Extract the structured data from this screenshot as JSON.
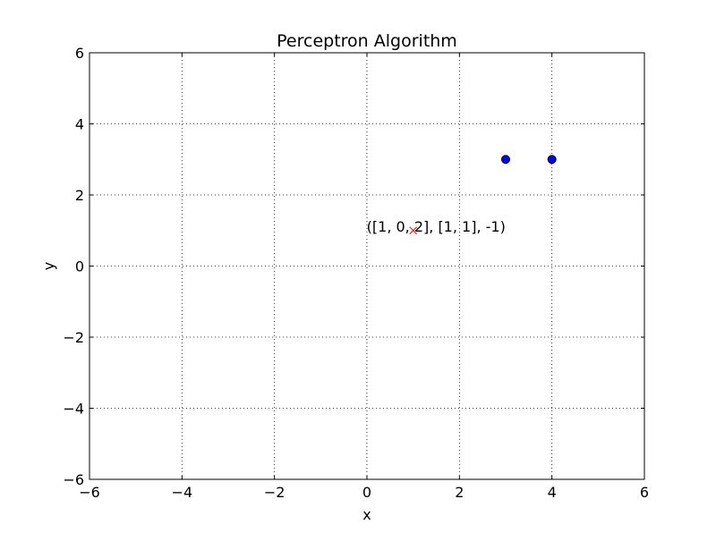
{
  "chart_data": {
    "type": "scatter",
    "title": "Perceptron Algorithm",
    "xlabel": "x",
    "ylabel": "y",
    "xlim": [
      -6,
      6
    ],
    "ylim": [
      -6,
      6
    ],
    "xticks": [
      -6,
      -4,
      -2,
      0,
      2,
      4,
      6
    ],
    "yticks": [
      -6,
      -4,
      -2,
      0,
      2,
      4,
      6
    ],
    "xtick_labels": [
      "−6",
      "−4",
      "−2",
      "0",
      "2",
      "4",
      "6"
    ],
    "ytick_labels": [
      "−6",
      "−4",
      "−2",
      "0",
      "2",
      "4",
      "6"
    ],
    "grid": true,
    "series": [
      {
        "marker": "circle",
        "color": "#0000ff",
        "points": [
          {
            "x": 3,
            "y": 3
          },
          {
            "x": 4,
            "y": 3
          }
        ]
      },
      {
        "marker": "x",
        "color": "#ff0000",
        "points": [
          {
            "x": 1,
            "y": 1
          }
        ]
      }
    ],
    "annotations": [
      {
        "text": "([1, 0, 2], [1, 1], -1)",
        "x": 1,
        "y": 1
      }
    ]
  }
}
